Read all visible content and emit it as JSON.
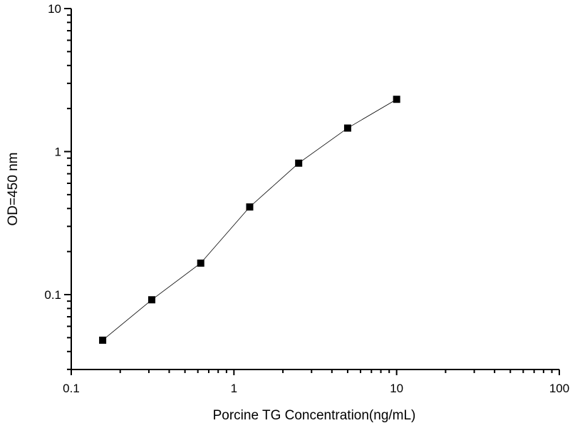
{
  "chart_data": {
    "type": "line",
    "title": "",
    "xlabel": "Porcine TG Concentration(ng/mL)",
    "ylabel": "OD=450 nm",
    "xscale": "log",
    "yscale": "log",
    "xlim": [
      0.1,
      100
    ],
    "ylim": [
      0.03,
      10
    ],
    "xticks": [
      "0.1",
      "1",
      "10",
      "100"
    ],
    "yticks": [
      "0.1",
      "1",
      "10"
    ],
    "grid": false,
    "marker": "square",
    "color": "#000000",
    "x": [
      0.156,
      0.3125,
      0.625,
      1.25,
      2.5,
      5,
      10
    ],
    "y": [
      0.048,
      0.092,
      0.166,
      0.41,
      0.83,
      1.46,
      2.32
    ]
  }
}
